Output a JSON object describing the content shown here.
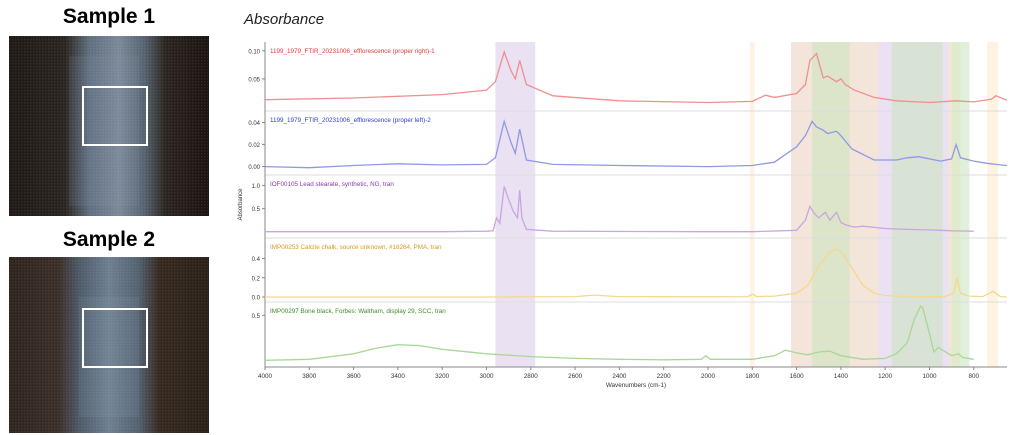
{
  "samples": [
    {
      "title": "Sample 1",
      "base_color": "#1d1612"
    },
    {
      "title": "Sample 2",
      "base_color": "#2a1f1a"
    }
  ],
  "chart_data": {
    "type": "line",
    "title": "Absorbance",
    "xlabel": "Wavenumbers (cm-1)",
    "ylabel": "Absorbance",
    "xlim": [
      4000,
      650
    ],
    "x_reversed": true,
    "x_ticks": [
      4000,
      3800,
      3600,
      3400,
      3200,
      3000,
      2800,
      2600,
      2400,
      2200,
      2000,
      1800,
      1600,
      1400,
      1200,
      1000,
      800
    ],
    "highlight_regions": [
      {
        "from": 2960,
        "to": 2780,
        "color": "#d9c9e8"
      },
      {
        "from": 1625,
        "to": 900,
        "color": "#d9c9e8"
      },
      {
        "from": 1810,
        "to": 1790,
        "color": "#fbe9c6"
      },
      {
        "from": 1625,
        "to": 1230,
        "color": "#fbe9c6"
      },
      {
        "from": 915,
        "to": 860,
        "color": "#fbe9c6"
      },
      {
        "from": 740,
        "to": 690,
        "color": "#fbe9c6"
      },
      {
        "from": 1530,
        "to": 1360,
        "color": "#c9e3bd"
      },
      {
        "from": 1170,
        "to": 940,
        "color": "#c9e3bd"
      },
      {
        "from": 900,
        "to": 820,
        "color": "#c9e3bd"
      }
    ],
    "series": [
      {
        "name": "1199_1979_FTIR_20231006_efflorescence (proper right)-1",
        "color": "#e23b3b",
        "line_color": "#f08f8f",
        "ylim": [
          0.0,
          0.105
        ],
        "y_ticks": [
          {
            "v": 0.1,
            "label": "0.10"
          },
          {
            "v": 0.05,
            "label": "0.05"
          }
        ],
        "x": [
          4000,
          3600,
          3200,
          3000,
          2960,
          2920,
          2890,
          2870,
          2850,
          2820,
          2700,
          2400,
          2000,
          1800,
          1740,
          1700,
          1600,
          1560,
          1540,
          1510,
          1480,
          1460,
          1420,
          1400,
          1380,
          1340,
          1250,
          1150,
          1000,
          880,
          800,
          720,
          700,
          650
        ],
        "y": [
          0.013,
          0.016,
          0.022,
          0.03,
          0.045,
          0.098,
          0.065,
          0.05,
          0.083,
          0.04,
          0.02,
          0.011,
          0.008,
          0.01,
          0.021,
          0.017,
          0.024,
          0.04,
          0.083,
          0.095,
          0.052,
          0.055,
          0.045,
          0.05,
          0.04,
          0.03,
          0.017,
          0.011,
          0.008,
          0.011,
          0.009,
          0.014,
          0.02,
          0.012
        ]
      },
      {
        "name": "1199_1979_FTIR_20231006_efflorescence (proper left)-2",
        "color": "#2940c9",
        "line_color": "#8f99e6",
        "ylim": [
          -0.004,
          0.045
        ],
        "y_ticks": [
          {
            "v": 0.04,
            "label": "0.04"
          },
          {
            "v": 0.02,
            "label": "0.02"
          },
          {
            "v": 0.0,
            "label": "0.00"
          }
        ],
        "x": [
          4000,
          3800,
          3600,
          3400,
          3200,
          3000,
          2960,
          2920,
          2890,
          2870,
          2850,
          2820,
          2700,
          2400,
          2000,
          1800,
          1700,
          1600,
          1560,
          1530,
          1510,
          1480,
          1460,
          1420,
          1400,
          1350,
          1250,
          1150,
          1100,
          1050,
          1000,
          950,
          900,
          880,
          860,
          800,
          740,
          700,
          650
        ],
        "y": [
          0.0,
          -0.001,
          0.001,
          0.0025,
          0.0015,
          0.002,
          0.008,
          0.041,
          0.022,
          0.012,
          0.034,
          0.006,
          0.002,
          0.001,
          0.0,
          0.001,
          0.004,
          0.018,
          0.028,
          0.041,
          0.036,
          0.033,
          0.03,
          0.032,
          0.028,
          0.016,
          0.006,
          0.006,
          0.008,
          0.009,
          0.007,
          0.005,
          0.007,
          0.02,
          0.008,
          0.005,
          0.003,
          0.002,
          0.001
        ]
      },
      {
        "name": "IOF00105 Lead stearate, synthetic, NG, tran",
        "color": "#8a3aa8",
        "line_color": "#c9a6e0",
        "ylim": [
          -0.05,
          1.1
        ],
        "y_ticks": [
          {
            "v": 1.0,
            "label": "1.0"
          },
          {
            "v": 0.5,
            "label": "0.5"
          }
        ],
        "x": [
          4000,
          3200,
          3000,
          2970,
          2955,
          2940,
          2920,
          2900,
          2880,
          2860,
          2850,
          2840,
          2820,
          2700,
          2000,
          1800,
          1600,
          1560,
          1540,
          1520,
          1500,
          1470,
          1450,
          1420,
          1400,
          1380,
          1340,
          1300,
          1200,
          1100,
          1000,
          950,
          900,
          850,
          800
        ],
        "y": [
          0.0,
          0.0,
          0.01,
          0.02,
          0.3,
          0.18,
          0.98,
          0.7,
          0.45,
          0.3,
          0.9,
          0.3,
          0.05,
          0.01,
          0.0,
          0.0,
          0.03,
          0.25,
          0.55,
          0.4,
          0.3,
          0.42,
          0.25,
          0.42,
          0.2,
          0.15,
          0.1,
          0.12,
          0.07,
          0.05,
          0.04,
          0.03,
          0.02,
          0.015,
          0.01
        ]
      },
      {
        "name": "IMP00253 Calcite chalk, source unknown, #18264, PMA, tran",
        "color": "#d49a1e",
        "line_color": "#f5d890",
        "ylim": [
          -0.01,
          0.55
        ],
        "y_ticks": [
          {
            "v": 0.4,
            "label": "0.4"
          },
          {
            "v": 0.2,
            "label": "0.2"
          },
          {
            "v": 0.0,
            "label": "0.0"
          }
        ],
        "x": [
          4000,
          3000,
          2600,
          2515,
          2400,
          2000,
          1820,
          1797,
          1780,
          1700,
          1600,
          1550,
          1500,
          1450,
          1420,
          1400,
          1350,
          1300,
          1250,
          1200,
          1100,
          1000,
          930,
          890,
          876,
          860,
          820,
          760,
          712,
          680,
          650
        ],
        "y": [
          0.0,
          0.0,
          0.005,
          0.02,
          0.005,
          0.002,
          0.005,
          0.03,
          0.005,
          0.01,
          0.04,
          0.12,
          0.32,
          0.47,
          0.5,
          0.47,
          0.3,
          0.12,
          0.04,
          0.015,
          0.005,
          0.003,
          0.004,
          0.04,
          0.2,
          0.04,
          0.01,
          0.005,
          0.06,
          0.005,
          0.0
        ]
      },
      {
        "name": "IMP00297 Bone black, Forbes: Waltham, display 29, SCC, tran",
        "color": "#3f8a2a",
        "line_color": "#a8d898",
        "ylim": [
          -0.02,
          0.58
        ],
        "y_ticks": [
          {
            "v": 0.5,
            "label": "0.5"
          }
        ],
        "x": [
          4000,
          3800,
          3600,
          3500,
          3400,
          3300,
          3200,
          3000,
          2800,
          2600,
          2400,
          2200,
          2030,
          2010,
          1990,
          1800,
          1700,
          1650,
          1600,
          1550,
          1500,
          1450,
          1400,
          1300,
          1200,
          1150,
          1100,
          1070,
          1040,
          1030,
          1000,
          980,
          960,
          900,
          870,
          850,
          800
        ],
        "y": [
          0.01,
          0.02,
          0.08,
          0.14,
          0.18,
          0.17,
          0.13,
          0.08,
          0.05,
          0.03,
          0.02,
          0.015,
          0.02,
          0.06,
          0.02,
          0.02,
          0.06,
          0.12,
          0.09,
          0.07,
          0.1,
          0.11,
          0.06,
          0.02,
          0.03,
          0.08,
          0.2,
          0.45,
          0.6,
          0.58,
          0.3,
          0.1,
          0.15,
          0.06,
          0.08,
          0.04,
          0.02
        ]
      }
    ]
  }
}
